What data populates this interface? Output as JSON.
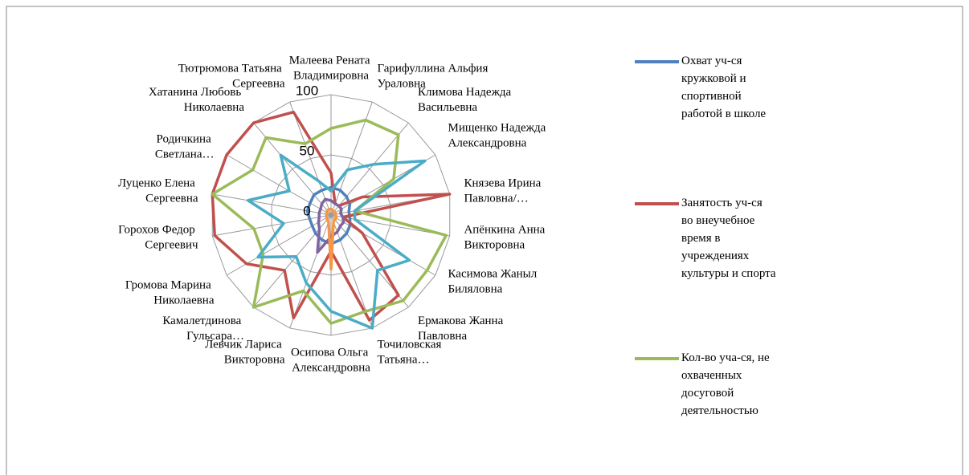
{
  "chart_data": {
    "type": "radar",
    "categories": [
      "Малеева Рената Владимировна",
      "Гарифуллина Альфия Ураловна",
      "Климова Надежда Васильевна",
      "Мищенко Надежда Александровна",
      "Князева Ирина Павловна/…",
      "Апёнкина Анна Викторовна",
      "Касимова Жаныл Биляловна",
      "Ермакова Жанна Павловна",
      "Точиловская Татьяна…",
      "Осипова Ольга Александровна",
      "Левчик Лариса Викторовна",
      "Камалетдинова Гульсара…",
      "Громова Марина Николаевна",
      "Горохов Федор Сергеевич",
      "Луценко Елена Сергеевна",
      "Родичкина Светлана…",
      "Хатанина Любовь Николаевна",
      "Тютрюмова Татьяна Сергеевна"
    ],
    "series": [
      {
        "name": "Охват уч-ся кружковой и спортивной работой в школе",
        "color": "#4f81bd",
        "values": [
          23,
          22,
          20,
          18,
          15,
          16,
          18,
          20,
          22,
          24,
          22,
          20,
          18,
          18,
          20,
          20,
          22,
          22
        ]
      },
      {
        "name": "Занятость уч-ся во внеучебное время в учреждениях культуры и спорта",
        "color": "#c0504d",
        "values": [
          35,
          10,
          10,
          30,
          100,
          10,
          30,
          87,
          93,
          30,
          91,
          60,
          81,
          98,
          100,
          100,
          100,
          91
        ]
      },
      {
        "name": "Кол-во уча-ся, не охваченных досуговой деятельностью",
        "color": "#9bbb59",
        "values": [
          72,
          84,
          87,
          60,
          20,
          97,
          92,
          93,
          85,
          90,
          67,
          100,
          65,
          65,
          100,
          75,
          84,
          63
        ]
      },
      {
        "color": "#4bacc6",
        "values": [
          20,
          40,
          55,
          90,
          20,
          20,
          75,
          60,
          100,
          80,
          60,
          45,
          70,
          40,
          70,
          40,
          65,
          30
        ]
      },
      {
        "color": "#8064a2",
        "values": [
          12,
          10,
          10,
          10,
          8,
          10,
          12,
          12,
          15,
          18,
          33,
          15,
          12,
          10,
          10,
          10,
          12,
          14
        ]
      },
      {
        "color": "#f79646",
        "values": [
          5,
          4,
          4,
          4,
          4,
          4,
          5,
          5,
          6,
          45,
          6,
          5,
          4,
          4,
          4,
          4,
          5,
          5
        ]
      }
    ],
    "ylim": [
      0,
      100
    ],
    "yticks": [
      0,
      50,
      100
    ],
    "grid": true
  }
}
